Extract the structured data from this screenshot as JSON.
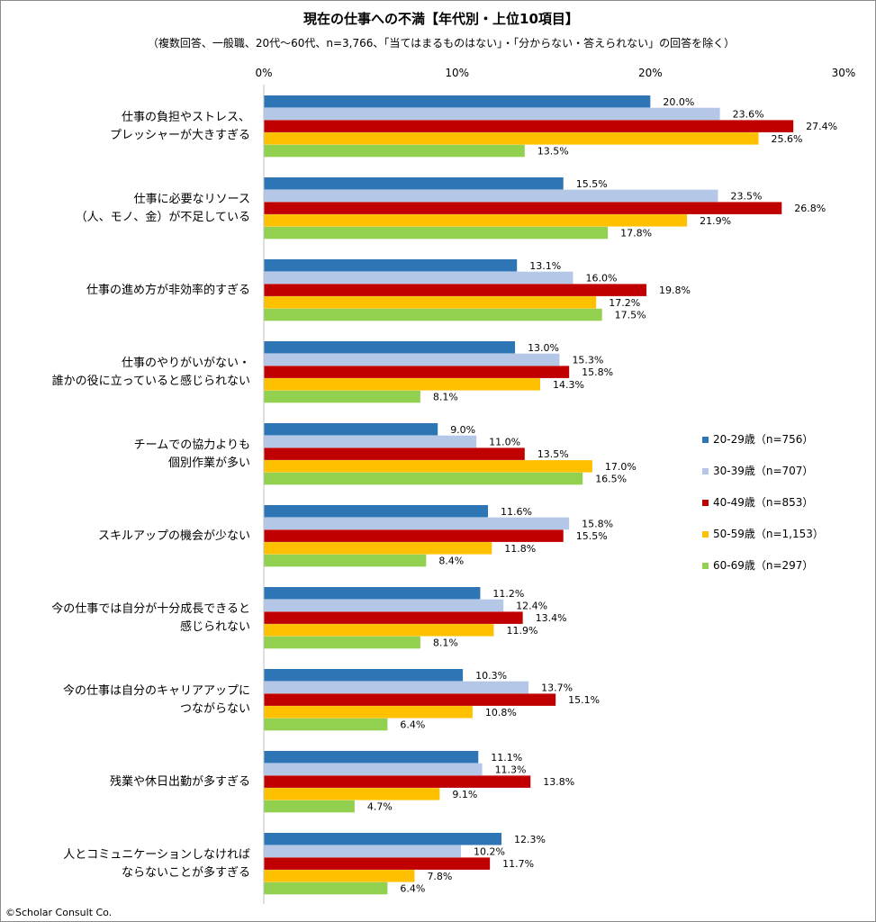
{
  "chart_data": {
    "type": "bar",
    "orientation": "horizontal",
    "title": "現在の仕事への不満【年代別・上位10項目】",
    "subtitle": "（複数回答、一般職、20代～60代、n=3,766、「当てはまるものはない」・「分からない・答えられない」の回答を除く）",
    "x_ticks": [
      "0%",
      "10%",
      "20%",
      "30%"
    ],
    "xlim": [
      0,
      30
    ],
    "grid": false,
    "legend_position": "right",
    "categories": [
      [
        "仕事の負担やストレス、",
        "プレッシャーが大きすぎる"
      ],
      [
        "仕事に必要なリソース",
        "（人、モノ、金）が不足している"
      ],
      [
        "仕事の進め方が非効率的すぎる"
      ],
      [
        "仕事のやりがいがない・",
        "誰かの役に立っていると感じられない"
      ],
      [
        "チームでの協力よりも",
        "個別作業が多い"
      ],
      [
        "スキルアップの機会が少ない"
      ],
      [
        "今の仕事では自分が十分成長できると",
        "感じられない"
      ],
      [
        "今の仕事は自分のキャリアアップに",
        "つながらない"
      ],
      [
        "残業や休日出勤が多すぎる"
      ],
      [
        "人とコミュニケーションしなければ",
        "ならないことが多すぎる"
      ]
    ],
    "series": [
      {
        "name": "20-29歳（n=756）",
        "color": "#2e75b6",
        "values": [
          20.0,
          15.5,
          13.1,
          13.0,
          9.0,
          11.6,
          11.2,
          10.3,
          11.1,
          12.3
        ],
        "labels": [
          "20.0%",
          "15.5%",
          "13.1%",
          "13.0%",
          "9.0%",
          "11.6%",
          "11.2%",
          "10.3%",
          "11.1%",
          "12.3%"
        ]
      },
      {
        "name": "30-39歳（n=707）",
        "color": "#b4c7e7",
        "values": [
          23.6,
          23.5,
          16.0,
          15.3,
          11.0,
          15.8,
          12.4,
          13.7,
          11.3,
          10.2
        ],
        "labels": [
          "23.6%",
          "23.5%",
          "16.0%",
          "15.3%",
          "11.0%",
          "15.8%",
          "12.4%",
          "13.7%",
          "11.3%",
          "10.2%"
        ]
      },
      {
        "name": "40-49歳（n=853）",
        "color": "#c00000",
        "values": [
          27.4,
          26.8,
          19.8,
          15.8,
          13.5,
          15.5,
          13.4,
          15.1,
          13.8,
          11.7
        ],
        "labels": [
          "27.4%",
          "26.8%",
          "19.8%",
          "15.8%",
          "13.5%",
          "15.5%",
          "13.4%",
          "15.1%",
          "13.8%",
          "11.7%"
        ]
      },
      {
        "name": "50-59歳（n=1,153）",
        "color": "#ffc000",
        "values": [
          25.6,
          21.9,
          17.2,
          14.3,
          17.0,
          11.8,
          11.9,
          10.8,
          9.1,
          7.8
        ],
        "labels": [
          "25.6%",
          "21.9%",
          "17.2%",
          "14.3%",
          "17.0%",
          "11.8%",
          "11.9%",
          "10.8%",
          "9.1%",
          "7.8%"
        ]
      },
      {
        "name": "60-69歳（n=297）",
        "color": "#92d050",
        "values": [
          13.5,
          17.8,
          17.5,
          8.1,
          16.5,
          8.4,
          8.1,
          6.4,
          4.7,
          6.4
        ],
        "labels": [
          "13.5%",
          "17.8%",
          "17.5%",
          "8.1%",
          "16.5%",
          "8.4%",
          "8.1%",
          "6.4%",
          "4.7%",
          "6.4%"
        ]
      }
    ]
  },
  "credit": "©Scholar Consult Co."
}
